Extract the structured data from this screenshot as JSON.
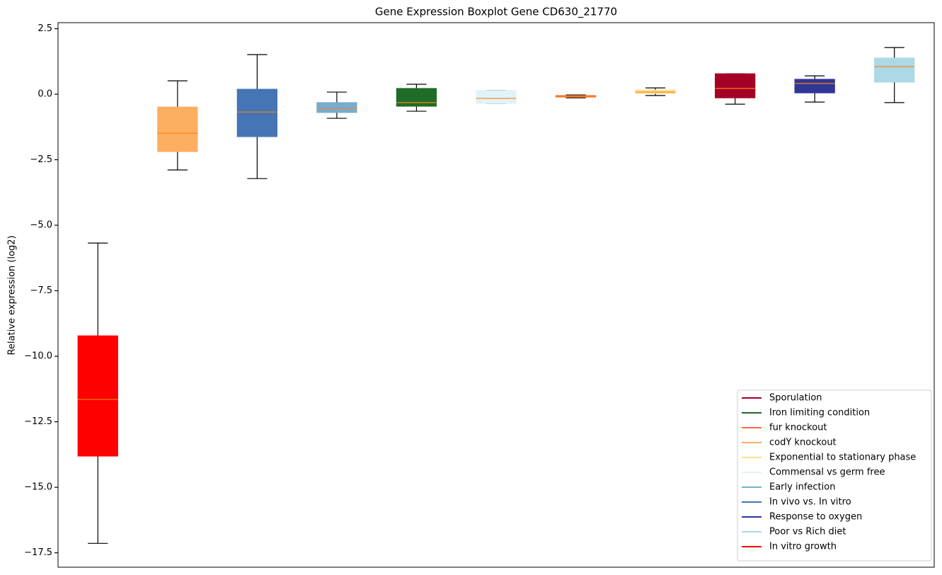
{
  "chart_data": {
    "type": "boxplot",
    "title": "Gene Expression Boxplot Gene CD630_21770",
    "ylabel": "Relative expression (log2)",
    "xlim": [
      0.5,
      11.5
    ],
    "ylim": [
      -18.05,
      2.73
    ],
    "yticks": [
      {
        "value": 2.5,
        "label": "2.5"
      },
      {
        "value": 0,
        "label": "0.0"
      },
      {
        "value": -2.5,
        "label": "−2.5"
      },
      {
        "value": -5,
        "label": "−5.0"
      },
      {
        "value": -7.5,
        "label": "−7.5"
      },
      {
        "value": -10,
        "label": "−10.0"
      },
      {
        "value": -12.5,
        "label": "−12.5"
      },
      {
        "value": -15,
        "label": "−15.0"
      },
      {
        "value": -17.5,
        "label": "−17.5"
      }
    ],
    "legend": "lower right",
    "series": [
      {
        "name": "Sporulation",
        "color": "#a50026",
        "x": 9,
        "whislo": -0.38,
        "q1": -0.14,
        "median": 0.22,
        "q3": 0.78,
        "whishi": 0.78
      },
      {
        "name": "Iron limiting condition",
        "color": "#1f6b28",
        "x": 5,
        "whislo": -0.65,
        "q1": -0.46,
        "median": -0.32,
        "q3": 0.22,
        "whishi": 0.38
      },
      {
        "name": "fur knockout",
        "color": "#f46d43",
        "x": 7,
        "whislo": -0.14,
        "q1": -0.11,
        "median": -0.08,
        "q3": -0.05,
        "whishi": -0.03
      },
      {
        "name": "codY knockout",
        "color": "#fdae61",
        "x": 2,
        "whislo": -2.89,
        "q1": -2.19,
        "median": -1.49,
        "q3": -0.49,
        "whishi": 0.51
      },
      {
        "name": "Exponential to stationary phase",
        "color": "#fee090",
        "x": 8,
        "whislo": -0.05,
        "q1": 0.03,
        "median": 0.08,
        "q3": 0.16,
        "whishi": 0.24
      },
      {
        "name": "Commensal vs germ free",
        "color": "#e0f3f8",
        "x": 6,
        "whislo": -0.35,
        "q1": -0.35,
        "median": -0.16,
        "q3": 0.14,
        "whishi": 0.14
      },
      {
        "name": "Early infection",
        "color": "#74add1",
        "x": 4,
        "whislo": -0.92,
        "q1": -0.7,
        "median": -0.54,
        "q3": -0.32,
        "whishi": 0.08
      },
      {
        "name": "In vivo vs. In vitro",
        "color": "#4575b4",
        "x": 3,
        "whislo": -3.22,
        "q1": -1.62,
        "median": -0.68,
        "q3": 0.19,
        "whishi": 1.51
      },
      {
        "name": "Response to oxygen",
        "color": "#313695",
        "x": 10,
        "whislo": -0.3,
        "q1": 0.05,
        "median": 0.41,
        "q3": 0.57,
        "whishi": 0.7
      },
      {
        "name": "Poor vs Rich diet",
        "color": "#add8e6",
        "x": 11,
        "whislo": -0.32,
        "q1": 0.46,
        "median": 1.05,
        "q3": 1.38,
        "whishi": 1.78
      },
      {
        "name": "In vitro growth",
        "color": "#ff0000",
        "x": 1,
        "whislo": -17.14,
        "q1": -13.81,
        "median": -11.65,
        "q3": -9.22,
        "whishi": -5.68
      }
    ]
  }
}
